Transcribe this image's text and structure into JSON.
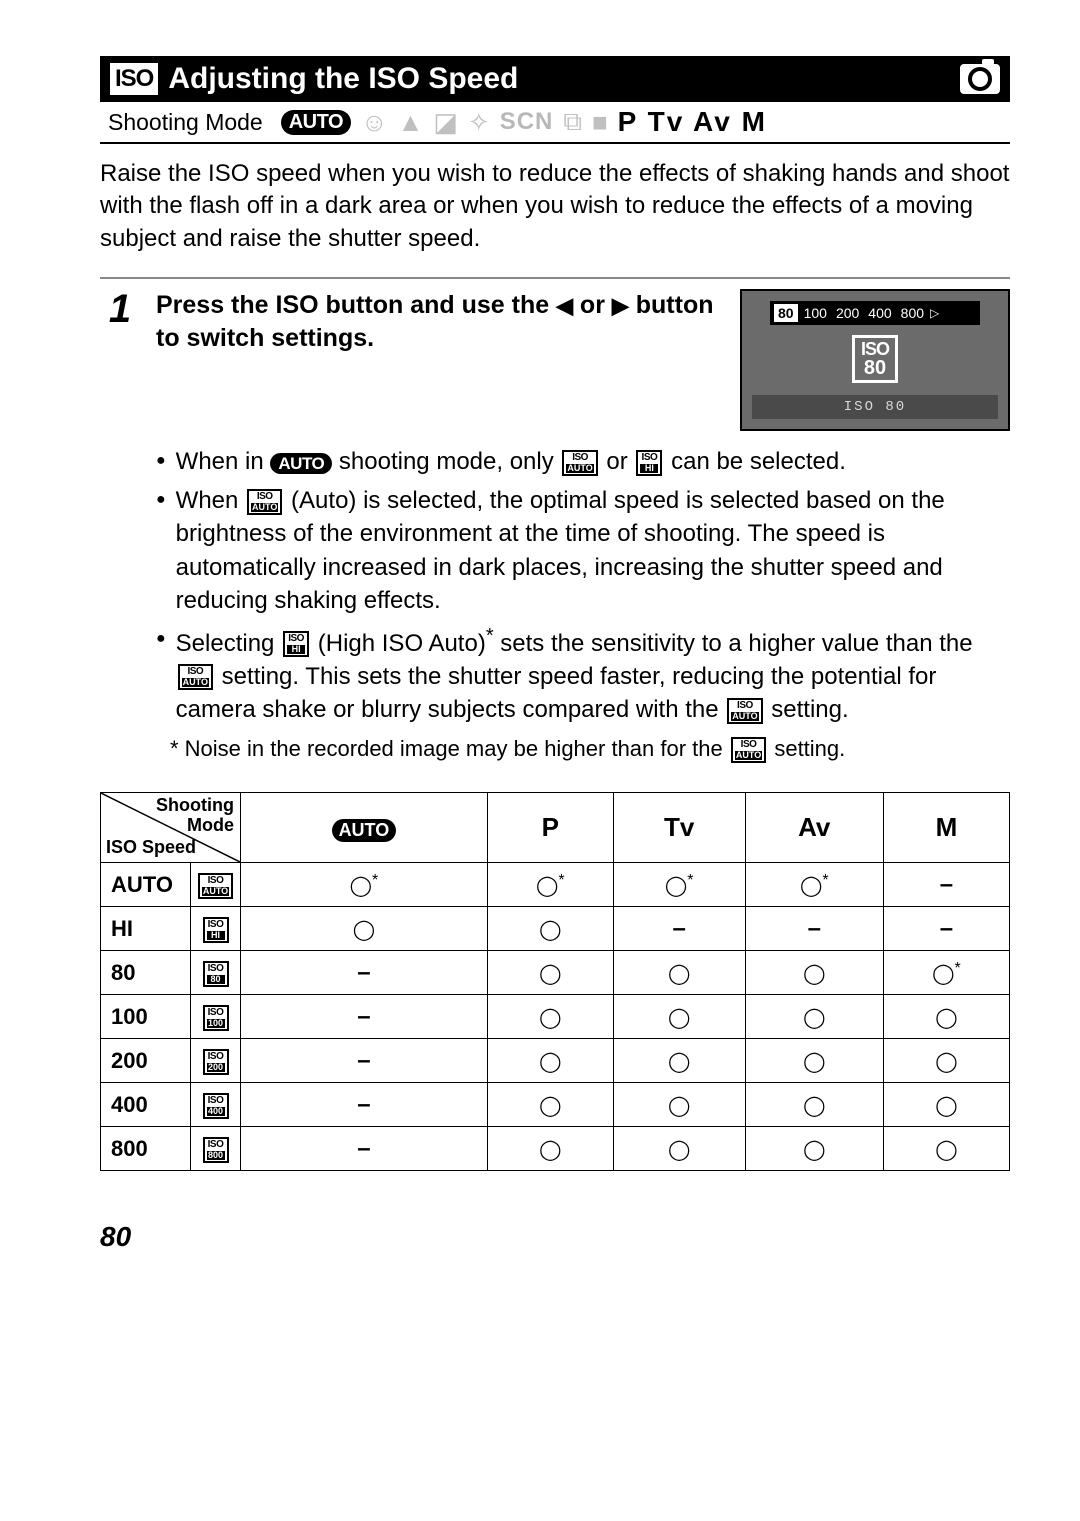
{
  "title": {
    "iso_badge": "ISO",
    "text": "Adjusting the ISO Speed"
  },
  "mode_row": {
    "label": "Shooting Mode",
    "auto_pill": "AUTO",
    "scn": "SCN",
    "letters": "P Tv Av M"
  },
  "intro": "Raise the ISO speed when you wish to reduce the effects of shaking hands and shoot with the flash off in a dark area or when you wish to reduce the effects of a moving subject and raise the shutter speed.",
  "step": {
    "num": "1",
    "title_a": "Press the ISO button and use the ",
    "title_b": " or ",
    "title_c": " button to switch settings.",
    "b1_a": "When in ",
    "b1_auto": "AUTO",
    "b1_b": " shooting mode, only ",
    "b1_c": " or ",
    "b1_d": " can be selected.",
    "b2": " (Auto) is selected, the optimal speed is selected based on the brightness of the environment at the time of shooting. The speed is automatically increased in dark places, increasing the shutter speed and reducing shaking effects.",
    "b2_pre": "When ",
    "b3_a": "Selecting ",
    "b3_b": " (High ISO Auto)",
    "b3_c": " sets the sensitivity to a higher value than the ",
    "b3_d": " setting. This sets the shutter speed faster, reducing the potential for camera shake or blurry subjects compared with the ",
    "b3_e": " setting.",
    "footnote": "* Noise in the recorded image may be higher than for the ",
    "footnote_end": " setting."
  },
  "lcd": {
    "selected": "80",
    "opts": [
      "100",
      "200",
      "400",
      "800"
    ],
    "iso_label": "ISO",
    "iso_value": "80",
    "bottom": "ISO 80"
  },
  "table": {
    "diag_tr": "Shooting\nMode",
    "diag_bl": "ISO Speed",
    "cols": [
      "AUTO",
      "P",
      "Tv",
      "Av",
      "M"
    ],
    "rows": [
      {
        "label": "AUTO",
        "icon_sub": "AUTO",
        "cells": [
          "O*",
          "O*",
          "O*",
          "O*",
          "–"
        ]
      },
      {
        "label": "HI",
        "icon_sub": "HI",
        "cells": [
          "O",
          "O",
          "–",
          "–",
          "–"
        ]
      },
      {
        "label": "80",
        "icon_sub": "80",
        "cells": [
          "–",
          "O",
          "O",
          "O",
          "O*"
        ]
      },
      {
        "label": "100",
        "icon_sub": "100",
        "cells": [
          "–",
          "O",
          "O",
          "O",
          "O"
        ]
      },
      {
        "label": "200",
        "icon_sub": "200",
        "cells": [
          "–",
          "O",
          "O",
          "O",
          "O"
        ]
      },
      {
        "label": "400",
        "icon_sub": "400",
        "cells": [
          "–",
          "O",
          "O",
          "O",
          "O"
        ]
      },
      {
        "label": "800",
        "icon_sub": "800",
        "cells": [
          "–",
          "O",
          "O",
          "O",
          "O"
        ]
      }
    ]
  },
  "page_number": "80",
  "mini_iso_top": "ISO"
}
